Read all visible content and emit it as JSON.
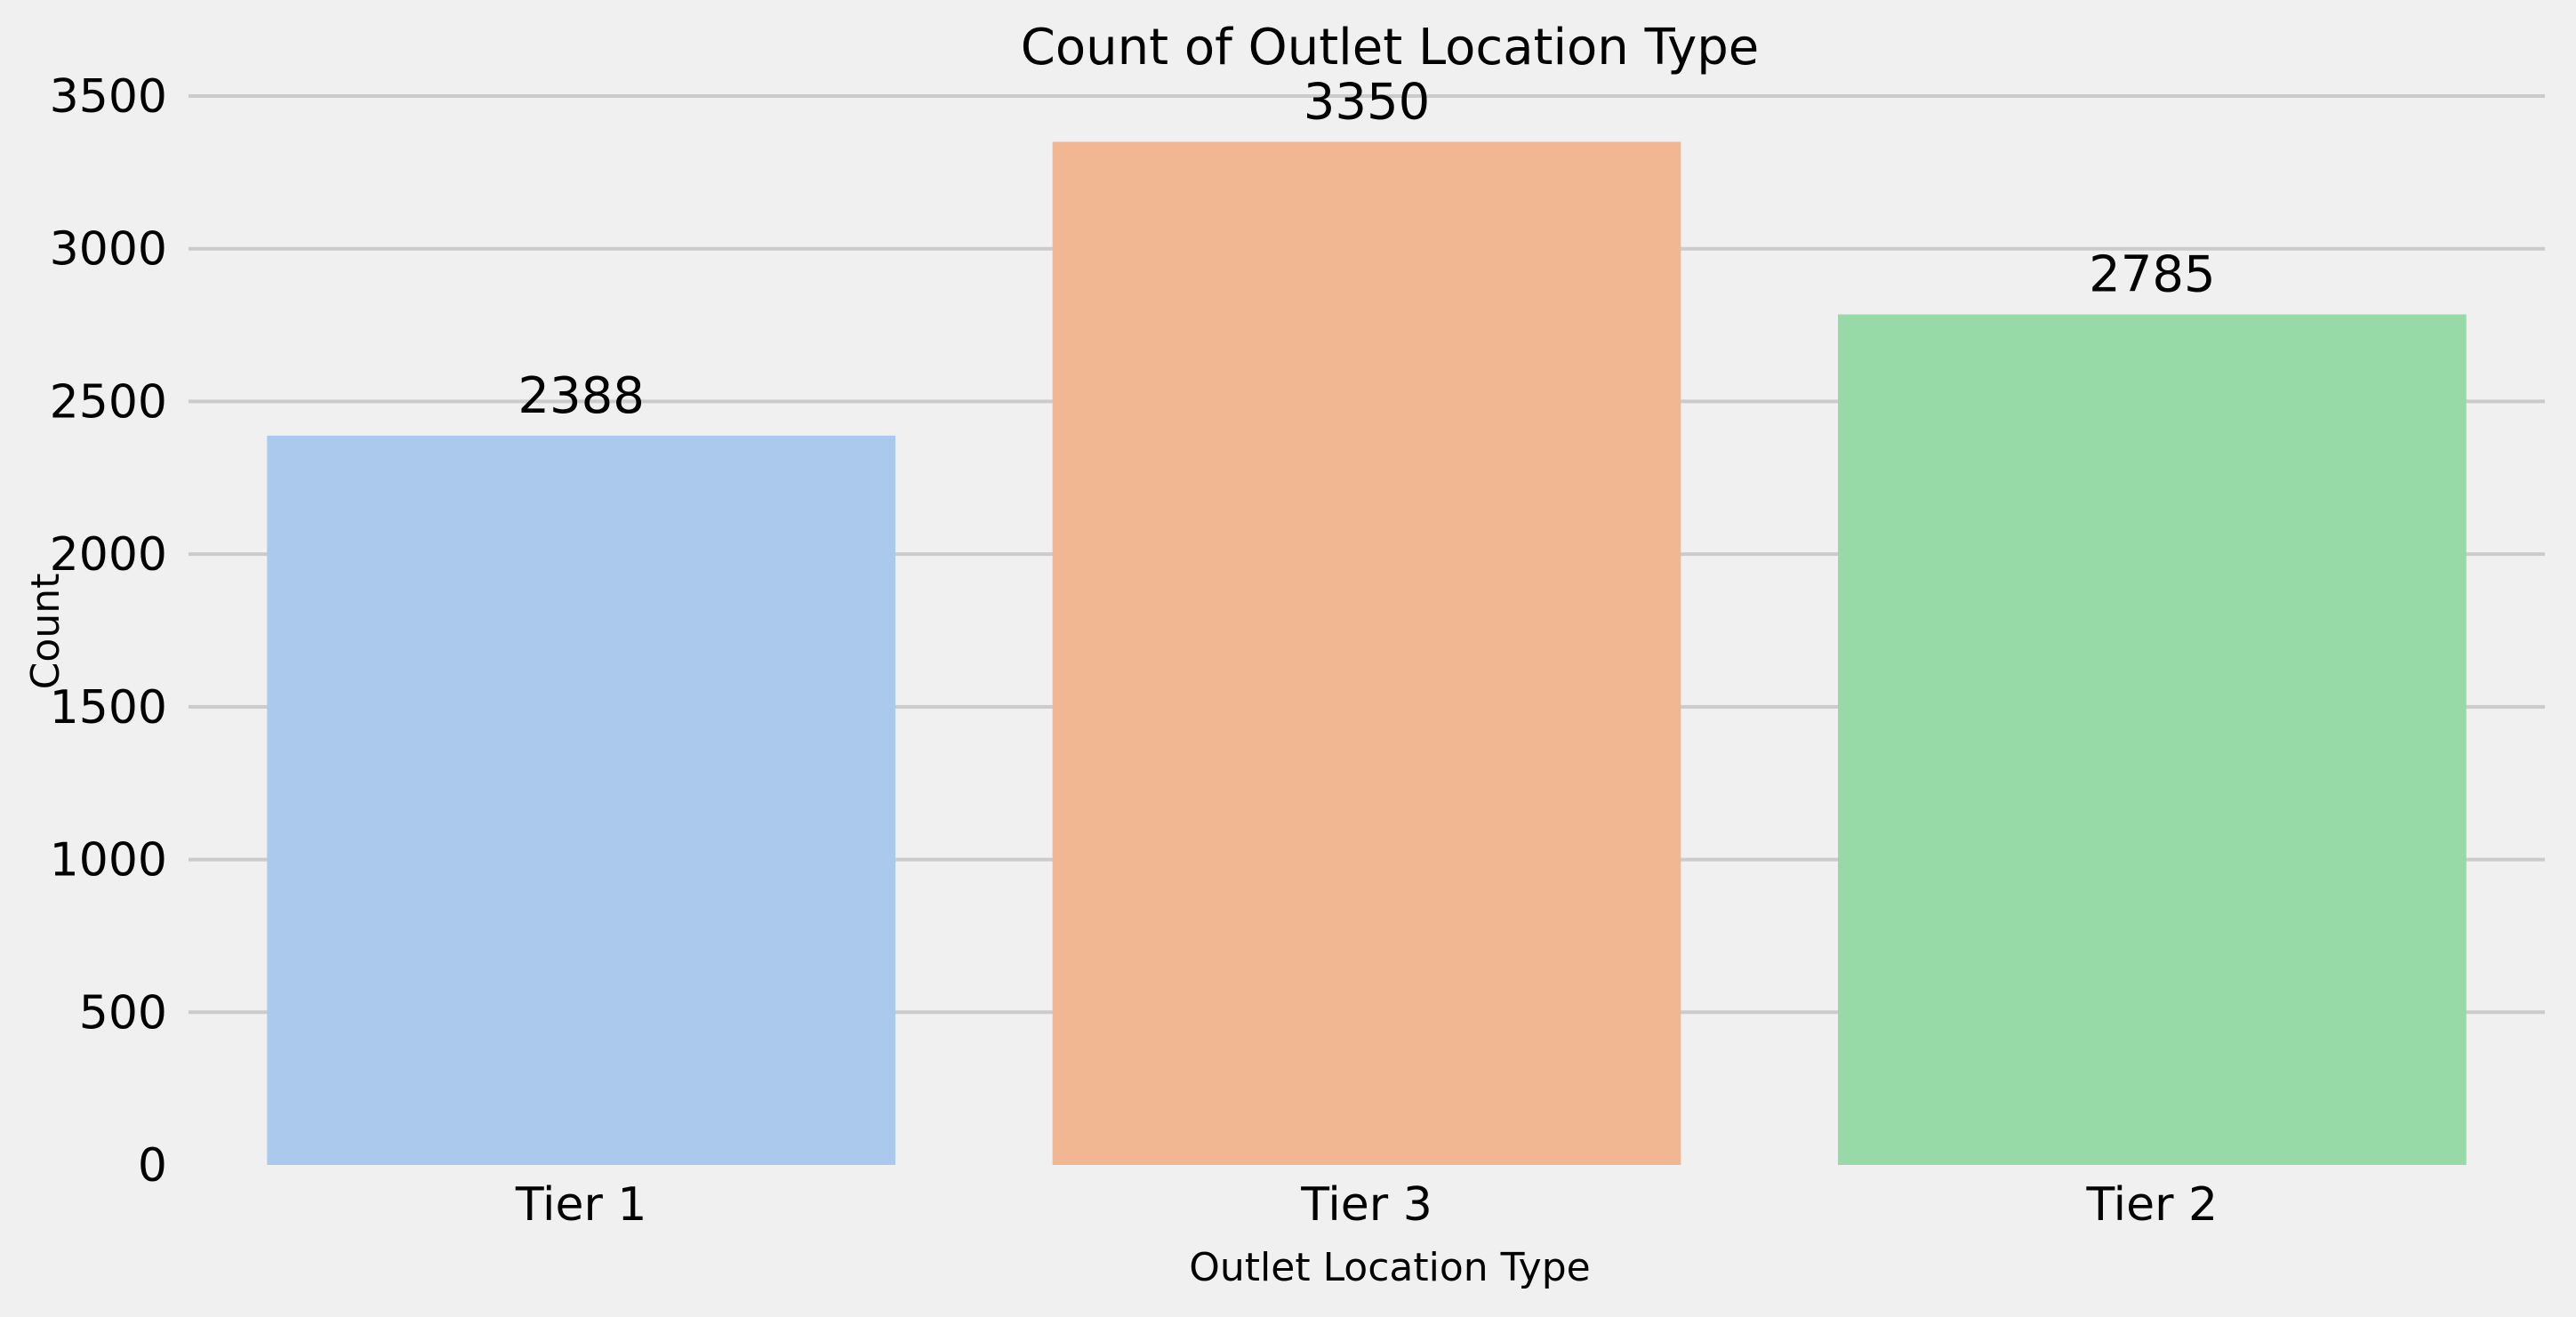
{
  "chart_data": {
    "type": "bar",
    "title": "Count of Outlet Location Type",
    "xlabel": "Outlet Location Type",
    "ylabel": "Count",
    "categories": [
      "Tier 1",
      "Tier 3",
      "Tier 2"
    ],
    "values": [
      2388,
      3350,
      2785
    ],
    "data_labels": [
      "2388",
      "3350",
      "2785"
    ],
    "colors": [
      "#abc9ec",
      "#f1b793",
      "#98d9a8"
    ],
    "ylim": [
      0,
      3500
    ],
    "yticks": [
      0,
      500,
      1000,
      1500,
      2000,
      2500,
      3000,
      3500
    ],
    "grid": "horizontal",
    "background": "#f0f0f0",
    "gridColor": "#cbcbcb"
  }
}
